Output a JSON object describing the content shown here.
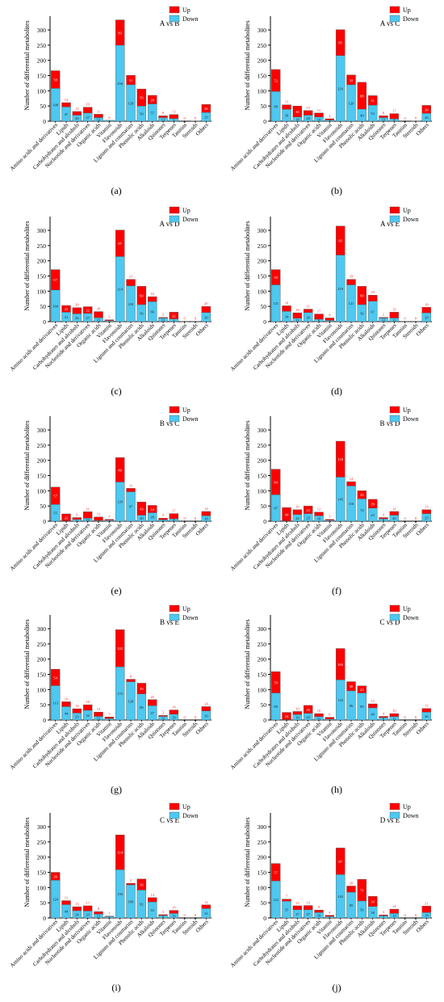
{
  "figure": {
    "ylabel": "Number of differential metabolites",
    "legend": {
      "up": "Up",
      "down": "Down"
    },
    "colors": {
      "up": "#ff0000",
      "down": "#4dc8f0"
    },
    "categories": [
      "Amino acids and derivatives",
      "Lipids",
      "Carbohydrates and alcohols",
      "Nucleotide and derivatives",
      "Organic acids",
      "Vitamin",
      "Flavonoids",
      "Lignans and coumarins",
      "Phenolic acids",
      "Alkaloids",
      "Quinones",
      "Terpenes",
      "Tannins",
      "Steroids",
      "Others"
    ],
    "yticks": [
      0,
      50,
      100,
      150,
      200,
      250,
      300
    ],
    "ylim": [
      0,
      340
    ]
  },
  "chart_data": [
    {
      "type": "bar",
      "title": "A vs B",
      "panel_label": "(a)",
      "legend_position": "top-right",
      "series": [
        {
          "name": "Down",
          "values": [
            108,
            47,
            20,
            27,
            12,
            3,
            250,
            120,
            50,
            57,
            12,
            9,
            0,
            1,
            29
          ]
        },
        {
          "name": "Up",
          "values": [
            58,
            14,
            12,
            19,
            11,
            0,
            83,
            31,
            56,
            28,
            6,
            13,
            0,
            0,
            26
          ]
        }
      ]
    },
    {
      "type": "bar",
      "title": "A vs C",
      "panel_label": "(b)",
      "legend_position": "top-right",
      "series": [
        {
          "name": "Down",
          "values": [
            98,
            39,
            14,
            20,
            14,
            4,
            216,
            120,
            40,
            53,
            12,
            8,
            0,
            1,
            26
          ]
        },
        {
          "name": "Up",
          "values": [
            72,
            15,
            36,
            15,
            13,
            4,
            85,
            32,
            88,
            31,
            6,
            17,
            0,
            0,
            26
          ]
        }
      ]
    },
    {
      "type": "bar",
      "title": "A vs D",
      "panel_label": "(c)",
      "legend_position": "top-right",
      "series": [
        {
          "name": "Down",
          "values": [
            104,
            31,
            26,
            27,
            13,
            3,
            214,
            118,
            56,
            66,
            12,
            9,
            1,
            1,
            30
          ]
        },
        {
          "name": "Up",
          "values": [
            67,
            22,
            20,
            22,
            20,
            3,
            87,
            21,
            60,
            16,
            2,
            22,
            0,
            0,
            20
          ]
        }
      ]
    },
    {
      "type": "bar",
      "title": "A vs E",
      "panel_label": "(d)",
      "legend_position": "top-right",
      "series": [
        {
          "name": "Down",
          "values": [
            121,
            34,
            11,
            30,
            8,
            4,
            219,
            121,
            56,
            67,
            12,
            12,
            1,
            1,
            29
          ]
        },
        {
          "name": "Up",
          "values": [
            50,
            18,
            18,
            11,
            17,
            8,
            95,
            18,
            60,
            20,
            2,
            19,
            0,
            0,
            18
          ]
        }
      ]
    },
    {
      "type": "bar",
      "title": "B vs C",
      "panel_label": "(e)",
      "legend_position": "top-right",
      "series": [
        {
          "name": "Down",
          "values": [
            55,
            1,
            6,
            10,
            2,
            3,
            129,
            97,
            20,
            28,
            5,
            8,
            0,
            0,
            18
          ]
        },
        {
          "name": "Up",
          "values": [
            57,
            23,
            6,
            21,
            12,
            3,
            80,
            11,
            43,
            24,
            5,
            17,
            0,
            0,
            14
          ]
        }
      ]
    },
    {
      "type": "bar",
      "title": "B vs D",
      "panel_label": "(f)",
      "legend_position": "top-right",
      "series": [
        {
          "name": "Down",
          "values": [
            87,
            1,
            22,
            25,
            18,
            3,
            145,
            116,
            74,
            43,
            8,
            20,
            0,
            0,
            25
          ]
        },
        {
          "name": "Up",
          "values": [
            84,
            44,
            16,
            25,
            12,
            3,
            118,
            14,
            26,
            29,
            4,
            12,
            0,
            0,
            13
          ]
        }
      ]
    },
    {
      "type": "bar",
      "title": "B vs E",
      "panel_label": "(g)",
      "legend_position": "top-right",
      "series": [
        {
          "name": "Down",
          "values": [
            113,
            44,
            23,
            32,
            12,
            5,
            175,
            126,
            86,
            47,
            12,
            19,
            0,
            0,
            30
          ]
        },
        {
          "name": "Up",
          "values": [
            54,
            16,
            14,
            18,
            14,
            5,
            122,
            8,
            35,
            20,
            3,
            14,
            0,
            0,
            14
          ]
        }
      ]
    },
    {
      "type": "bar",
      "title": "C vs D",
      "panel_label": "(h)",
      "legend_position": "top-right",
      "series": [
        {
          "name": "Down",
          "values": [
            89,
            1,
            18,
            22,
            11,
            3,
            132,
            96,
            89,
            40,
            8,
            11,
            0,
            0,
            26
          ]
        },
        {
          "name": "Up",
          "values": [
            70,
            24,
            10,
            26,
            10,
            6,
            103,
            30,
            23,
            13,
            4,
            10,
            0,
            0,
            12
          ]
        }
      ]
    },
    {
      "type": "bar",
      "title": "C vs E",
      "panel_label": "(i)",
      "legend_position": "top-right",
      "series": [
        {
          "name": "Down",
          "values": [
            124,
            44,
            24,
            23,
            13,
            5,
            159,
            109,
            92,
            53,
            8,
            15,
            0,
            0,
            31
          ]
        },
        {
          "name": "Up",
          "values": [
            26,
            13,
            13,
            17,
            8,
            1,
            114,
            5,
            36,
            14,
            3,
            10,
            0,
            0,
            12
          ]
        }
      ]
    },
    {
      "type": "bar",
      "title": "D vs E",
      "panel_label": "(j)",
      "legend_position": "top-right",
      "series": [
        {
          "name": "Down",
          "values": [
            122,
            55,
            27,
            27,
            18,
            5,
            143,
            85,
            56,
            38,
            7,
            15,
            0,
            0,
            18
          ]
        },
        {
          "name": "Up",
          "values": [
            57,
            7,
            13,
            14,
            8,
            4,
            87,
            20,
            71,
            33,
            3,
            14,
            0,
            0,
            21
          ]
        }
      ]
    }
  ]
}
